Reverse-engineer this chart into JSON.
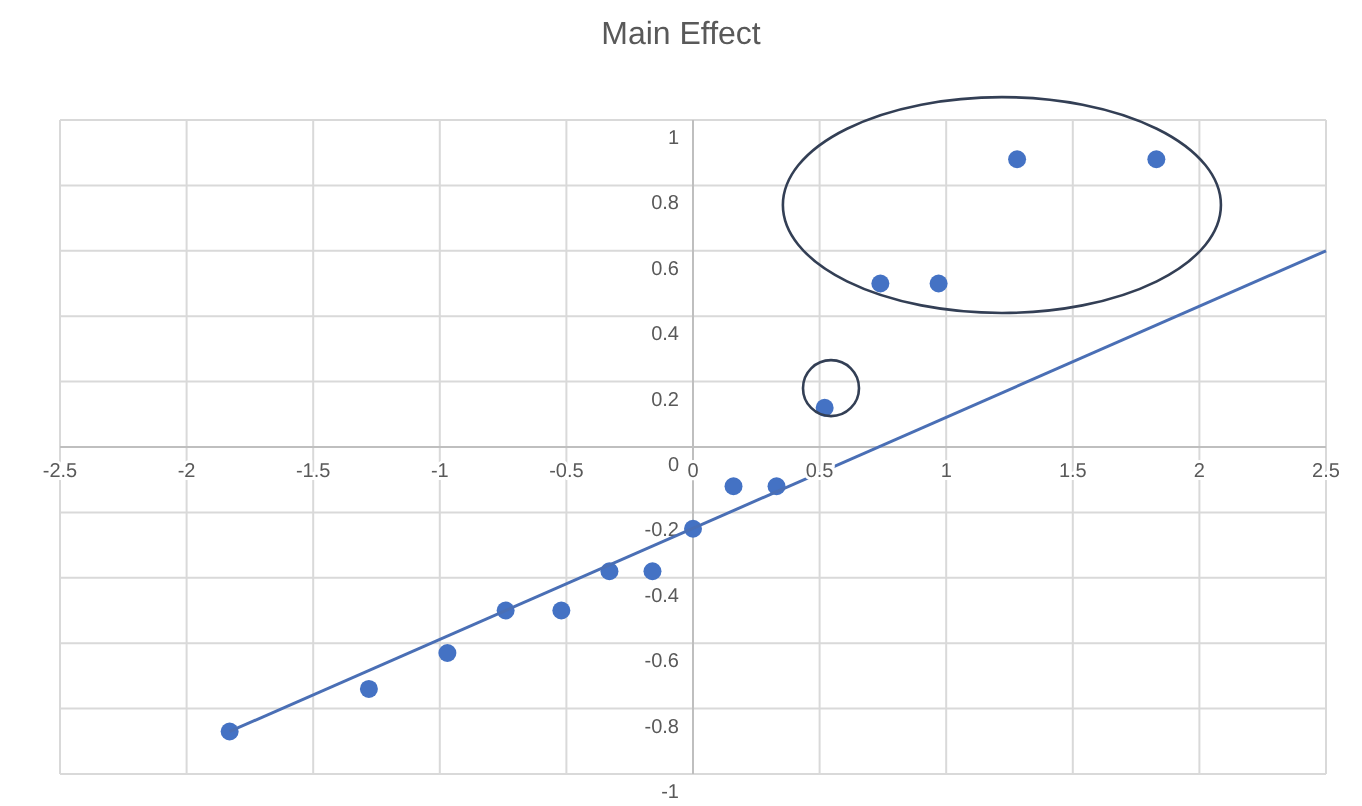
{
  "chart_data": {
    "type": "scatter",
    "title": "Main Effect",
    "xlim": [
      -2.5,
      2.5
    ],
    "ylim": [
      -1,
      1
    ],
    "xticks": [
      -2.5,
      -2,
      -1.5,
      -1,
      -0.5,
      0,
      0.5,
      1,
      1.5,
      2,
      2.5
    ],
    "yticks": [
      -1,
      -0.8,
      -0.6,
      -0.4,
      -0.2,
      0,
      0.2,
      0.4,
      0.6,
      0.8,
      1
    ],
    "grid": true,
    "marker": "circle",
    "series": [
      {
        "type": "scatter",
        "color": "#4472c4",
        "x": [
          -1.83,
          -1.28,
          -0.97,
          -0.74,
          -0.52,
          -0.33,
          -0.16,
          0,
          0.16,
          0.33,
          0.52,
          0.74,
          0.97,
          1.28,
          1.83
        ],
        "values": [
          -0.87,
          -0.74,
          -0.63,
          -0.5,
          -0.5,
          -0.38,
          -0.38,
          -0.25,
          -0.12,
          -0.12,
          0.12,
          0.5,
          0.5,
          0.88,
          0.88
        ]
      },
      {
        "type": "line",
        "color": "#4a6fb5",
        "marker": "none",
        "line_style": "solid",
        "x": [
          -1.83,
          2.5
        ],
        "values": [
          -0.87,
          0.6
        ]
      }
    ]
  }
}
